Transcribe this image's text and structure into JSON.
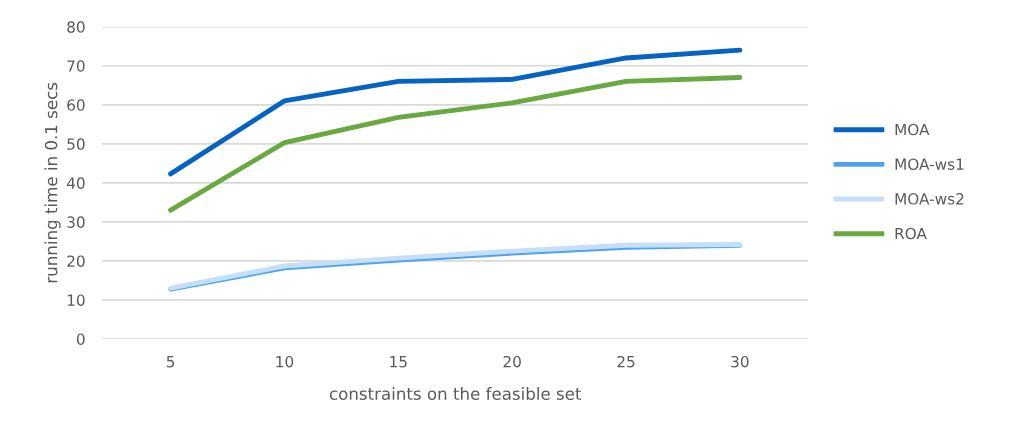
{
  "chart_data": {
    "type": "line",
    "xlabel": "constraints on the feasible set",
    "ylabel": "running time in 0.1 secs",
    "categories": [
      "5",
      "10",
      "15",
      "20",
      "25",
      "30"
    ],
    "series": [
      {
        "name": "MOA",
        "color": "#0563c1",
        "values": [
          42.3,
          61,
          66,
          66.5,
          72,
          74
        ]
      },
      {
        "name": "MOA-ws1",
        "color": "#4da3f0",
        "values": [
          12.8,
          18.2,
          20.2,
          22,
          23.5,
          24
        ]
      },
      {
        "name": "MOA-ws2",
        "color": "#c5dff8",
        "values": [
          13,
          18.7,
          20.7,
          22.5,
          24,
          24.2
        ]
      },
      {
        "name": "ROA",
        "color": "#6aa842",
        "values": [
          33,
          50.3,
          56.8,
          60.5,
          66,
          67
        ]
      }
    ],
    "ylim": [
      0,
      80
    ],
    "yticks": [
      0,
      10,
      20,
      30,
      40,
      50,
      60,
      70,
      80
    ],
    "grid": "y",
    "legend": "right",
    "marker": "none",
    "line_style": "solid"
  }
}
